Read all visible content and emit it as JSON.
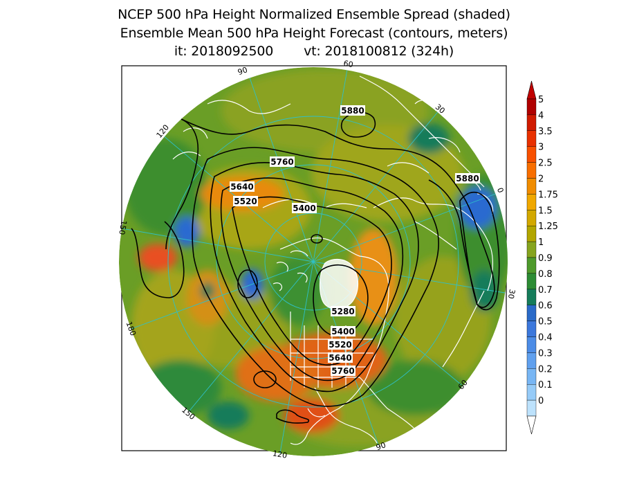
{
  "title": {
    "line1": "NCEP 500 hPa Height Normalized Ensemble Spread (shaded)",
    "line2": "Ensemble Mean 500 hPa Height Forecast (contours, meters)",
    "init": "it: 2018092500",
    "valid": "vt: 2018100812 (324h)"
  },
  "map": {
    "projection": "north-polar-stereographic",
    "longitude_labels": [
      "60",
      "30",
      "0",
      "30",
      "60",
      "90",
      "120",
      "150",
      "180",
      "150",
      "120",
      "90"
    ],
    "contour_labels": [
      "5880",
      "5760",
      "5880",
      "5640",
      "5520",
      "5400",
      "5280",
      "5400",
      "5520",
      "5640",
      "5760"
    ]
  },
  "colorbar": {
    "labels": [
      "5",
      "4",
      "3.5",
      "3",
      "2.5",
      "2",
      "1.75",
      "1.5",
      "1.25",
      "1",
      "0.9",
      "0.8",
      "0.7",
      "0.6",
      "0.5",
      "0.4",
      "0.3",
      "0.2",
      "0.1",
      "0"
    ],
    "colors": [
      "#b00000",
      "#d01a00",
      "#e83000",
      "#f85000",
      "#f86e00",
      "#f08c00",
      "#f0a800",
      "#d2a800",
      "#b2a600",
      "#86a41e",
      "#4e9a2c",
      "#2c8c34",
      "#157c5a",
      "#2a6ac8",
      "#3c78dc",
      "#4c8ce6",
      "#60a0ee",
      "#78b6f4",
      "#96cbf8",
      "#bde2fc"
    ],
    "top_color": "#c00000",
    "bottom_color": "#ffffff"
  }
}
